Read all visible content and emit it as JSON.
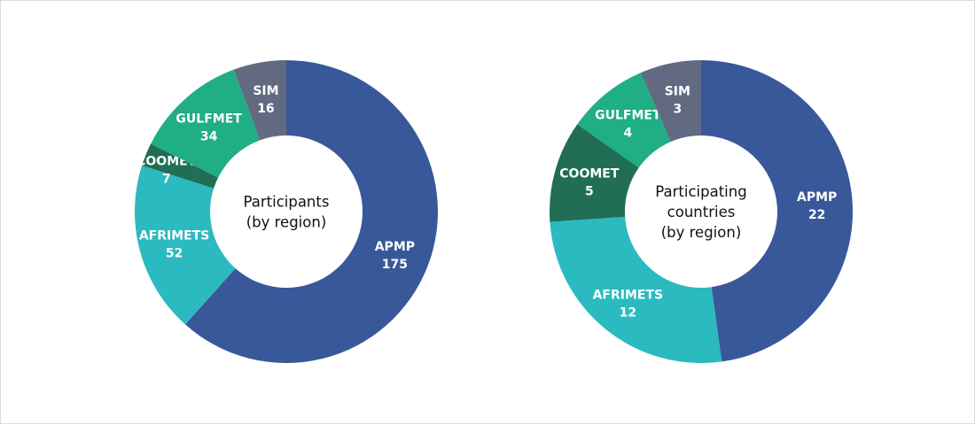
{
  "chart_data": [
    {
      "type": "pie",
      "donut": true,
      "title": [
        "Participants",
        "(by region)"
      ],
      "slices": [
        {
          "label": "APMP",
          "value": 175,
          "color": "#38589a"
        },
        {
          "label": "AFRIMETS",
          "value": 52,
          "color": "#2bbac0"
        },
        {
          "label": "COOMET",
          "value": 7,
          "color": "#216e55"
        },
        {
          "label": "GULFMET",
          "value": 34,
          "color": "#20ae84"
        },
        {
          "label": "SIM",
          "value": 16,
          "color": "#626a82"
        }
      ]
    },
    {
      "type": "pie",
      "donut": true,
      "title": [
        "Participating",
        "countries",
        "(by region)"
      ],
      "slices": [
        {
          "label": "APMP",
          "value": 22,
          "color": "#38589a"
        },
        {
          "label": "AFRIMETS",
          "value": 12,
          "color": "#2bbac0"
        },
        {
          "label": "COOMET",
          "value": 5,
          "color": "#216e55"
        },
        {
          "label": "GULFMET",
          "value": 4,
          "color": "#20ae84"
        },
        {
          "label": "SIM",
          "value": 3,
          "color": "#626a82"
        }
      ]
    }
  ]
}
